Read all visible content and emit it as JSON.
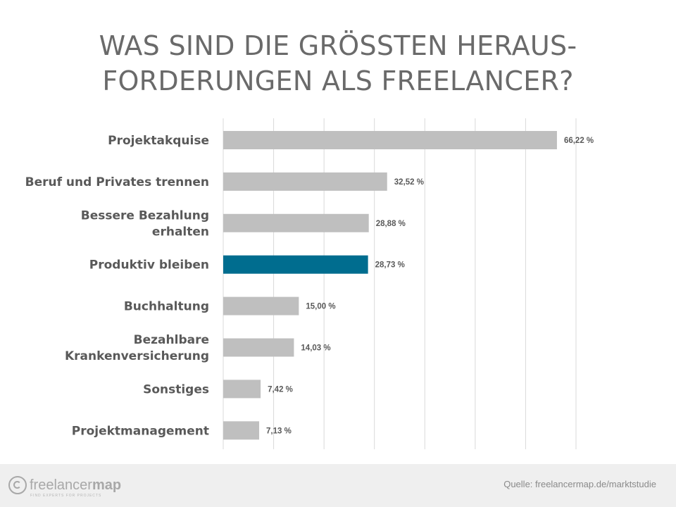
{
  "title": {
    "line1": "WAS SIND DIE GRÖSSTEN HERAUS-",
    "line2": "FORDERUNGEN ALS FREELANCER?"
  },
  "chart_data": {
    "type": "bar",
    "orientation": "horizontal",
    "categories": [
      [
        "Projektakquise"
      ],
      [
        "Beruf und Privates trennen"
      ],
      [
        "Bessere Bezahlung",
        "erhalten"
      ],
      [
        "Produktiv bleiben"
      ],
      [
        "Buchhaltung"
      ],
      [
        "Bezahlbare",
        "Krankenversicherung"
      ],
      [
        "Sonstiges"
      ],
      [
        "Projektmanagement"
      ]
    ],
    "values": [
      66.22,
      32.52,
      28.88,
      28.73,
      15.0,
      14.03,
      7.42,
      7.13
    ],
    "value_labels": [
      "66,22 %",
      "32,52 %",
      "28,88 %",
      "28,73 %",
      "15,00 %",
      "14,03 %",
      "7,42 %",
      "7,13 %"
    ],
    "highlight_index": 3,
    "xlim": [
      0,
      70
    ],
    "grid_step": 10,
    "grid": true,
    "colors": {
      "bar": "#bfbfbf",
      "highlight": "#006d8f",
      "grid": "#d9d9d9"
    }
  },
  "footer": {
    "logo": {
      "brand_light": "freelancer",
      "brand_bold": "map",
      "tagline": "FIND EXPERTS FOR PROJECTS"
    },
    "source": "Quelle: freelancermap.de/marktstudie"
  }
}
